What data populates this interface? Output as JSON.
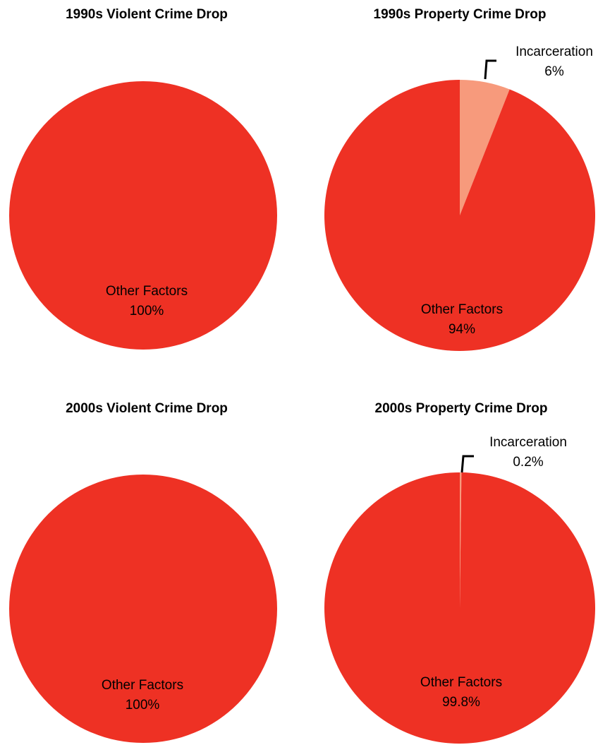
{
  "colors": {
    "other_factors": "#EE3124",
    "incarceration": "#F79A7C",
    "leader_line": "#000000",
    "title_text": "#000000"
  },
  "chart_data": [
    {
      "type": "pie",
      "title": "1990s Violent Crime Drop",
      "slices": [
        {
          "label": "Other Factors",
          "value": 100,
          "display": "100%"
        }
      ]
    },
    {
      "type": "pie",
      "title": "1990s Property Crime Drop",
      "slices": [
        {
          "label": "Incarceration",
          "value": 6,
          "display": "6%"
        },
        {
          "label": "Other Factors",
          "value": 94,
          "display": "94%"
        }
      ]
    },
    {
      "type": "pie",
      "title": "2000s Violent Crime Drop",
      "slices": [
        {
          "label": "Other Factors",
          "value": 100,
          "display": "100%"
        }
      ]
    },
    {
      "type": "pie",
      "title": "2000s Property Crime Drop",
      "slices": [
        {
          "label": "Incarceration",
          "value": 0.2,
          "display": "0.2%"
        },
        {
          "label": "Other Factors",
          "value": 99.8,
          "display": "99.8%"
        }
      ]
    }
  ]
}
